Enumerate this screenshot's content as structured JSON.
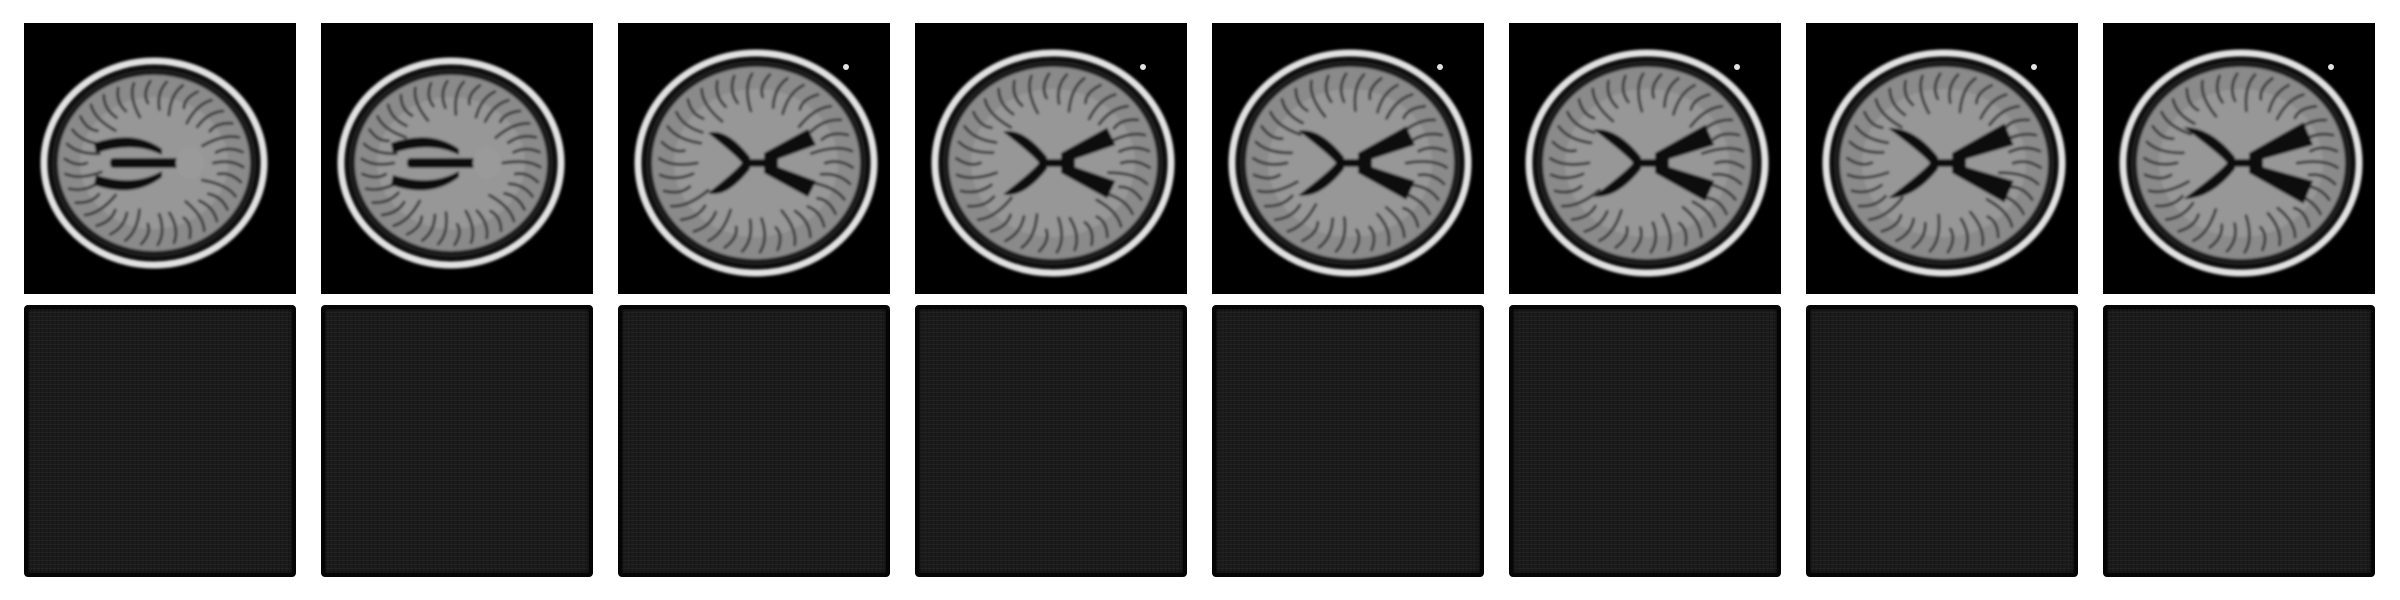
{
  "panels": {
    "input_row": [
      {
        "slice": 1,
        "ventricle_style": "narrow",
        "marker": false
      },
      {
        "slice": 2,
        "ventricle_style": "narrow",
        "marker": false
      },
      {
        "slice": 3,
        "ventricle_style": "butterfly",
        "marker": true
      },
      {
        "slice": 4,
        "ventricle_style": "butterfly",
        "marker": true
      },
      {
        "slice": 5,
        "ventricle_style": "butterfly",
        "marker": true
      },
      {
        "slice": 6,
        "ventricle_style": "butterfly",
        "marker": true
      },
      {
        "slice": 7,
        "ventricle_style": "butterfly",
        "marker": true
      },
      {
        "slice": 8,
        "ventricle_style": "butterfly",
        "marker": true
      }
    ],
    "output_row": [
      {
        "slice": 1,
        "state": "blank"
      },
      {
        "slice": 2,
        "state": "blank"
      },
      {
        "slice": 3,
        "state": "blank"
      },
      {
        "slice": 4,
        "state": "blank"
      },
      {
        "slice": 5,
        "state": "blank"
      },
      {
        "slice": 6,
        "state": "blank"
      },
      {
        "slice": 7,
        "state": "blank"
      },
      {
        "slice": 8,
        "state": "blank"
      }
    ]
  },
  "colors": {
    "background": "#ffffff",
    "input_background": "#000000",
    "scalp": "#e2e2e2",
    "brain_tissue": "#8a8a8a",
    "ventricle": "#111111",
    "output_fill": "#1b1b1b",
    "output_border": "#050505"
  }
}
